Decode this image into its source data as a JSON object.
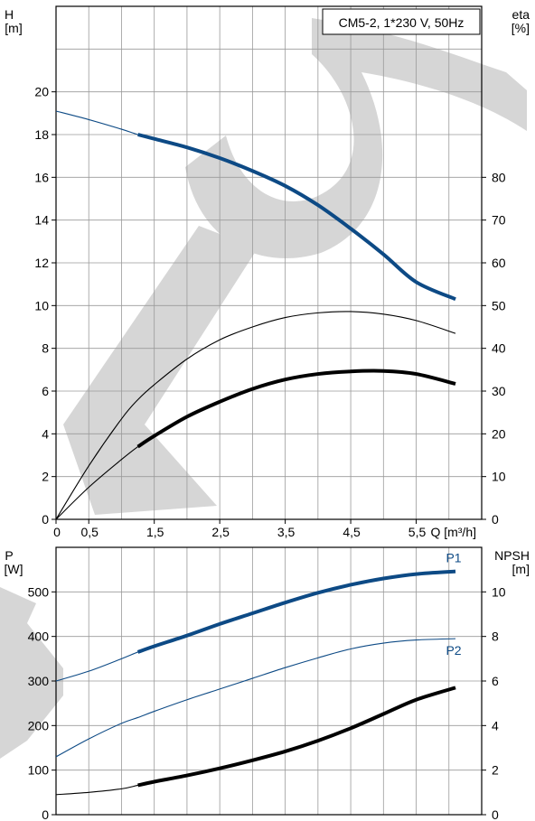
{
  "chart_data": [
    {
      "type": "line",
      "title": "CM5-2, 1*230 V, 50Hz",
      "xlabel": "Q [m³/h]",
      "ylabel": "H\n[m]",
      "y2label": "eta\n[%]",
      "xlim": [
        0,
        6.5
      ],
      "ylim": [
        0,
        24
      ],
      "y2lim": [
        0,
        120
      ],
      "grid": true,
      "x_tick_labels": [
        "0",
        "0,5",
        "1,5",
        "2,5",
        "3,5",
        "4,5",
        "5,5"
      ],
      "y_tick_labels": [
        "0",
        "2",
        "4",
        "6",
        "8",
        "10",
        "12",
        "14",
        "16",
        "18",
        "20"
      ],
      "y2_tick_labels": [
        "0",
        "10",
        "20",
        "30",
        "40",
        "50",
        "60",
        "70",
        "80"
      ],
      "series": [
        {
          "color": "#0d4a85",
          "axis": "left",
          "style": "thin-then-thick",
          "thick_from_x": 1.25,
          "x": [
            0,
            0.5,
            1.0,
            1.25,
            1.5,
            2.0,
            2.5,
            3.0,
            3.5,
            4.0,
            4.5,
            5.0,
            5.5,
            6.1
          ],
          "values": [
            19.1,
            18.7,
            18.25,
            18.0,
            17.8,
            17.4,
            16.9,
            16.3,
            15.6,
            14.7,
            13.6,
            12.4,
            11.1,
            10.3
          ]
        },
        {
          "color": "#000000",
          "axis": "right",
          "style": "thin",
          "x": [
            0,
            0.5,
            1.0,
            1.25,
            1.5,
            2.0,
            2.5,
            3.0,
            3.5,
            4.0,
            4.5,
            5.0,
            5.5,
            6.1
          ],
          "values": [
            0,
            12.5,
            23.5,
            28,
            31.5,
            37.5,
            42,
            45,
            47.2,
            48.3,
            48.6,
            48,
            46.5,
            43.5
          ]
        },
        {
          "color": "#000000",
          "axis": "right",
          "style": "thin-then-thick",
          "thick_from_x": 1.25,
          "x": [
            0,
            0.5,
            1.0,
            1.25,
            1.5,
            2.0,
            2.5,
            3.0,
            3.5,
            4.0,
            4.5,
            5.0,
            5.5,
            6.1
          ],
          "values": [
            0,
            7.5,
            14,
            17,
            19.5,
            24,
            27.5,
            30.5,
            32.7,
            34,
            34.6,
            34.7,
            34,
            31.7
          ]
        }
      ]
    },
    {
      "type": "line",
      "xlabel": "",
      "ylabel": "P\n[W]",
      "y2label": "NPSH\n[m]",
      "xlim": [
        0,
        6.5
      ],
      "ylim": [
        0,
        600
      ],
      "y2lim": [
        0,
        12
      ],
      "grid": true,
      "y_tick_labels": [
        "0",
        "100",
        "200",
        "300",
        "400",
        "500"
      ],
      "y2_tick_labels": [
        "0",
        "2",
        "4",
        "6",
        "8",
        "10"
      ],
      "series": [
        {
          "name": "P1",
          "color": "#0d4a85",
          "axis": "left",
          "style": "thin-then-thick",
          "thick_from_x": 1.25,
          "x": [
            0,
            0.5,
            1.0,
            1.25,
            1.5,
            2.0,
            2.5,
            3.0,
            3.5,
            4.0,
            4.5,
            5.0,
            5.5,
            6.1
          ],
          "values": [
            300,
            322,
            350,
            365,
            378,
            402,
            428,
            452,
            476,
            498,
            516,
            530,
            540,
            546
          ]
        },
        {
          "name": "P2",
          "color": "#0d4a85",
          "axis": "left",
          "style": "thin",
          "x": [
            0,
            0.5,
            1.0,
            1.25,
            1.5,
            2.0,
            2.5,
            3.0,
            3.5,
            4.0,
            4.5,
            5.0,
            5.5,
            6.1
          ],
          "values": [
            130,
            170,
            205,
            218,
            232,
            258,
            282,
            306,
            330,
            352,
            372,
            385,
            392,
            395
          ]
        },
        {
          "color": "#000000",
          "axis": "left",
          "style": "thin-then-thick",
          "thick_from_x": 1.25,
          "x": [
            0,
            0.5,
            1.0,
            1.25,
            1.5,
            2.0,
            2.5,
            3.0,
            3.5,
            4.0,
            4.5,
            5.0,
            5.5,
            6.1
          ],
          "values": [
            45,
            50,
            58,
            66,
            74,
            88,
            104,
            122,
            142,
            166,
            194,
            226,
            258,
            285
          ]
        }
      ]
    }
  ]
}
